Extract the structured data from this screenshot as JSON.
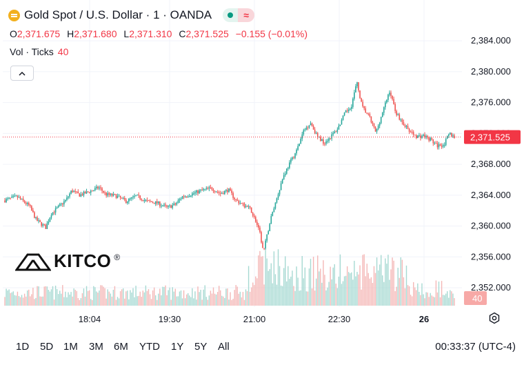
{
  "header": {
    "title": "Gold Spot / U.S. Dollar · 1 · OANDA",
    "ohlc": [
      {
        "label": "O",
        "value": "2,371.675"
      },
      {
        "label": "H",
        "value": "2,371.680"
      },
      {
        "label": "L",
        "value": "2,371.310"
      },
      {
        "label": "C",
        "value": "2,371.525"
      }
    ],
    "change": "−0.155 (−0.01%)",
    "volume_label": "Vol · Ticks",
    "volume_value": "40"
  },
  "watermark": "KITCO",
  "colors": {
    "up": "#26a69a",
    "down": "#ef5350",
    "price_tag": "#f23645"
  },
  "bottom_bar": {
    "ranges": [
      "1D",
      "5D",
      "1M",
      "3M",
      "6M",
      "YTD",
      "1Y",
      "5Y",
      "All"
    ],
    "clock": "00:33:37 (UTC-4)"
  },
  "chart_data": {
    "type": "candlestick",
    "y_ticks": [
      "2,384.000",
      "2,380.000",
      "2,376.000",
      "2,372.000",
      "2,368.000",
      "2,364.000",
      "2,360.000",
      "2,356.000",
      "2,352.000"
    ],
    "ylim": [
      2349.5,
      2387.5
    ],
    "x_ticks": [
      "18:04",
      "19:30",
      "21:00",
      "22:30",
      "26"
    ],
    "last_price": 2371.525,
    "last_price_label": "2,371.525",
    "last_volume_label": "40",
    "grid": true,
    "close_series_anchors": [
      [
        0,
        2363.3
      ],
      [
        20,
        2363.8
      ],
      [
        38,
        2362.6
      ],
      [
        48,
        2360.8
      ],
      [
        62,
        2359.8
      ],
      [
        70,
        2361.6
      ],
      [
        80,
        2362.4
      ],
      [
        92,
        2363.4
      ],
      [
        100,
        2364.6
      ],
      [
        112,
        2364.0
      ],
      [
        130,
        2364.6
      ],
      [
        140,
        2365.0
      ],
      [
        150,
        2364.1
      ],
      [
        165,
        2363.9
      ],
      [
        180,
        2363.2
      ],
      [
        195,
        2363.9
      ],
      [
        210,
        2363.2
      ],
      [
        225,
        2363.0
      ],
      [
        240,
        2362.4
      ],
      [
        252,
        2362.8
      ],
      [
        262,
        2363.8
      ],
      [
        278,
        2364.2
      ],
      [
        290,
        2364.6
      ],
      [
        305,
        2364.9
      ],
      [
        318,
        2364.2
      ],
      [
        330,
        2364.7
      ],
      [
        340,
        2363.4
      ],
      [
        352,
        2362.7
      ],
      [
        362,
        2362.2
      ],
      [
        370,
        2360.6
      ],
      [
        376,
        2359.0
      ],
      [
        381,
        2356.6
      ],
      [
        386,
        2358.6
      ],
      [
        392,
        2361.0
      ],
      [
        400,
        2363.4
      ],
      [
        410,
        2366.4
      ],
      [
        420,
        2368.2
      ],
      [
        430,
        2369.8
      ],
      [
        440,
        2372.3
      ],
      [
        450,
        2373.4
      ],
      [
        460,
        2371.6
      ],
      [
        470,
        2370.8
      ],
      [
        480,
        2371.6
      ],
      [
        490,
        2372.6
      ],
      [
        500,
        2374.5
      ],
      [
        510,
        2375.6
      ],
      [
        518,
        2378.6
      ],
      [
        526,
        2375.4
      ],
      [
        536,
        2374.2
      ],
      [
        546,
        2372.1
      ],
      [
        556,
        2374.8
      ],
      [
        566,
        2377.5
      ],
      [
        576,
        2374.6
      ],
      [
        586,
        2373.3
      ],
      [
        596,
        2372.2
      ],
      [
        606,
        2371.6
      ],
      [
        616,
        2371.7
      ],
      [
        626,
        2371.2
      ],
      [
        636,
        2370.4
      ],
      [
        646,
        2370.6
      ],
      [
        654,
        2372.0
      ],
      [
        661,
        2371.5
      ]
    ]
  }
}
